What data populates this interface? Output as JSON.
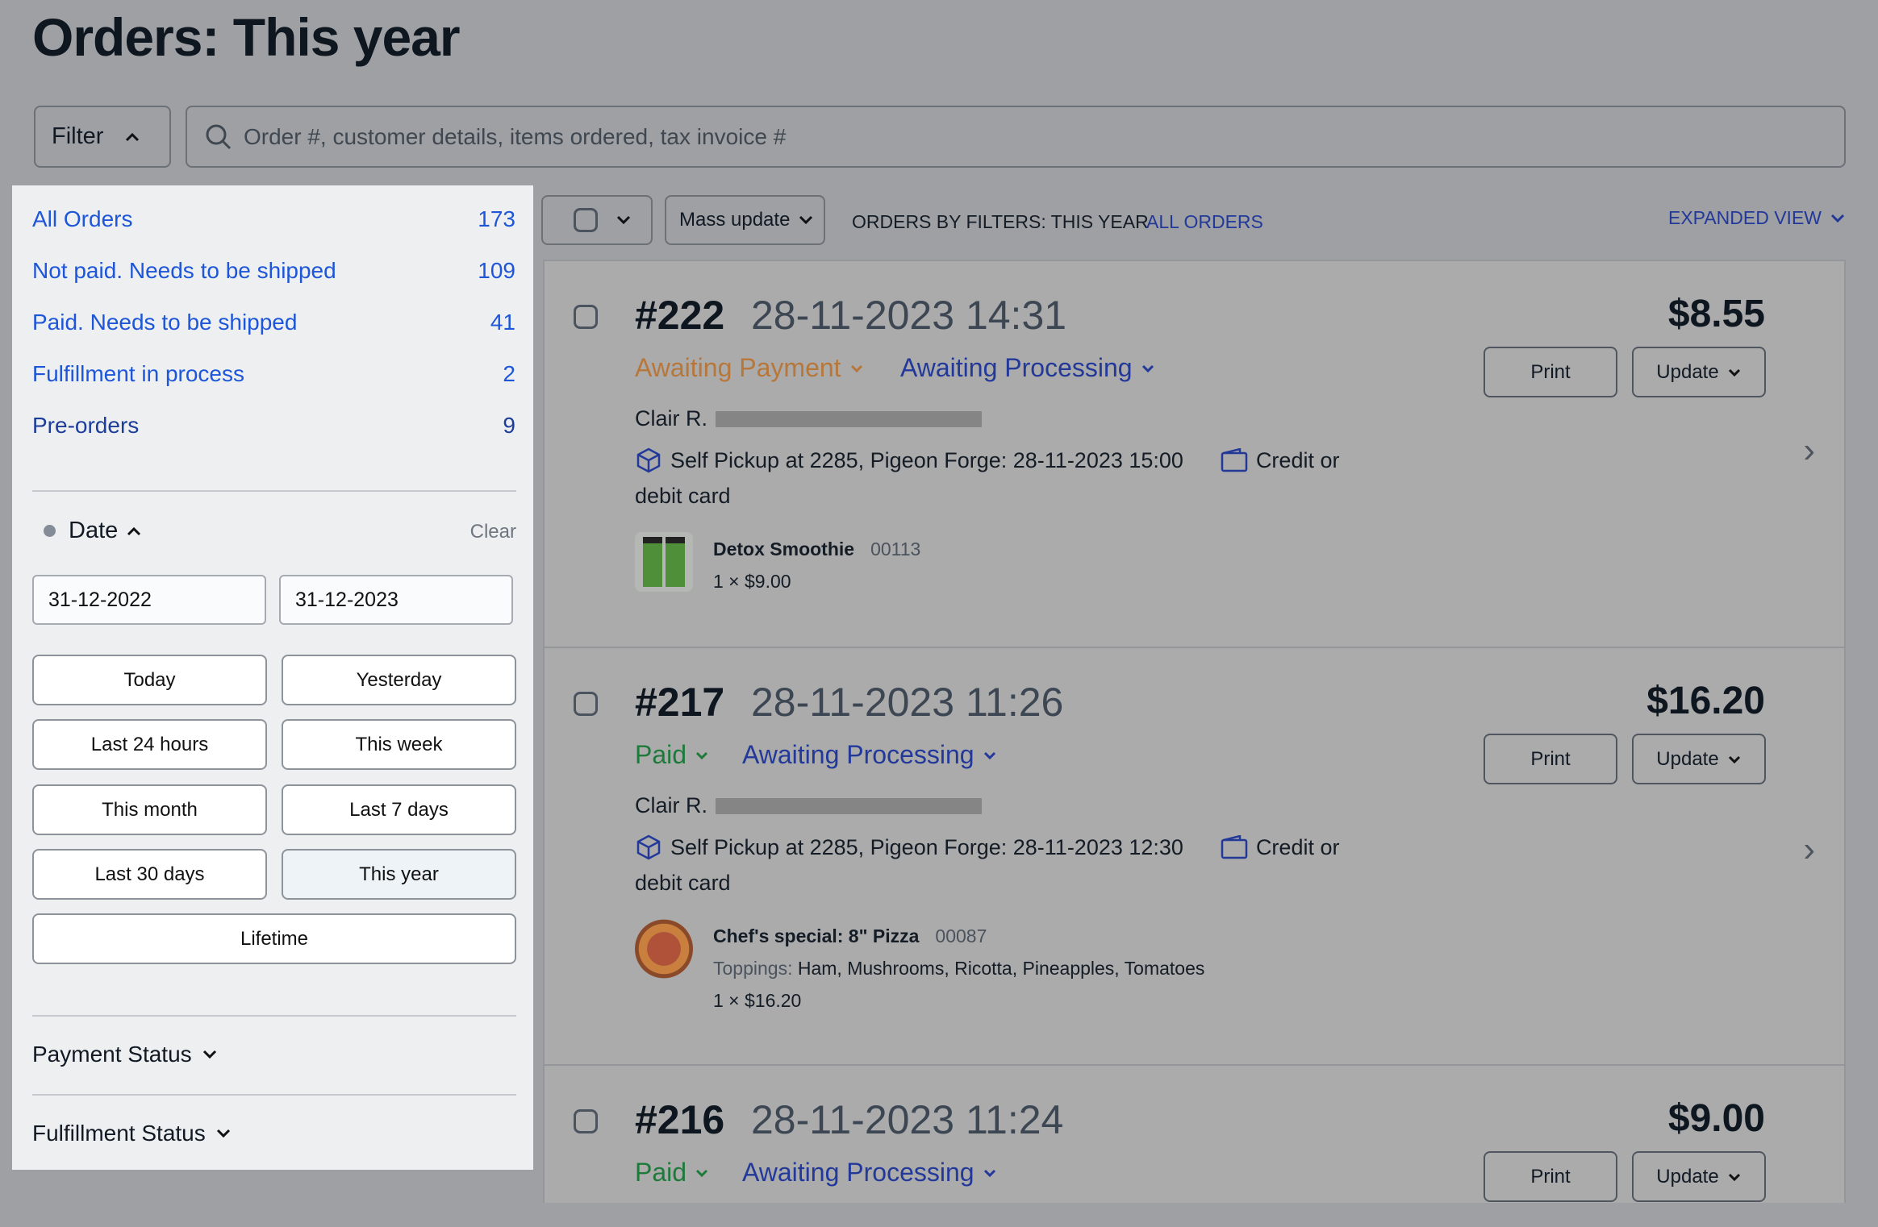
{
  "title": "Orders: This year",
  "filter": {
    "label": "Filter",
    "icon": "chevron-up-icon"
  },
  "search": {
    "placeholder": "Order #, customer details, items ordered, tax invoice #"
  },
  "sidebar": {
    "items": [
      {
        "label": "All Orders",
        "count": "173"
      },
      {
        "label": "Not paid. Needs to be shipped",
        "count": "109"
      },
      {
        "label": "Paid. Needs to be shipped",
        "count": "41"
      },
      {
        "label": "Fulfillment in process",
        "count": "2"
      },
      {
        "label": "Pre-orders",
        "count": "9"
      }
    ],
    "date": {
      "label": "Date",
      "clear": "Clear",
      "from": "31-12-2022",
      "to": "31-12-2023",
      "presets": [
        "Today",
        "Yesterday",
        "Last 24 hours",
        "This week",
        "This month",
        "Last 7 days",
        "Last 30 days",
        "This year",
        "Lifetime"
      ],
      "selected": "This year"
    },
    "payment_status": "Payment Status",
    "fulfillment_status": "Fulfillment Status"
  },
  "toolbar": {
    "mass_update": "Mass update",
    "filters_label": "ORDERS BY FILTERS: THIS YEAR",
    "all_orders": "ALL ORDERS",
    "view": "EXPANDED VIEW"
  },
  "colors": {
    "link": "#1d56d8",
    "awaiting_payment": "#b8773a",
    "paid": "#1e7a3a",
    "processing": "#23399a"
  },
  "orders": [
    {
      "number": "#222",
      "date": "28-11-2023 14:31",
      "price": "$8.55",
      "payment": "Awaiting Payment",
      "fulfillment": "Awaiting Processing",
      "customer": "Clair R.",
      "shipping": "Self Pickup at 2285, Pigeon Forge: 28-11-2023 15:00",
      "payment_method_a": "Credit or",
      "payment_method_b": "debit card",
      "print": "Print",
      "update": "Update",
      "item": {
        "name": "Detox Smoothie",
        "sku": "00113",
        "qty": "1 × $9.00"
      }
    },
    {
      "number": "#217",
      "date": "28-11-2023 11:26",
      "price": "$16.20",
      "payment": "Paid",
      "fulfillment": "Awaiting Processing",
      "customer": "Clair R.",
      "shipping": "Self Pickup at 2285, Pigeon Forge: 28-11-2023 12:30",
      "payment_method_a": "Credit or",
      "payment_method_b": "debit card",
      "print": "Print",
      "update": "Update",
      "item": {
        "name": "Chef's special: 8\" Pizza",
        "sku": "00087",
        "toppings_label": "Toppings:",
        "toppings": "Ham, Mushrooms, Ricotta, Pineapples, Tomatoes",
        "qty": "1 × $16.20"
      }
    },
    {
      "number": "#216",
      "date": "28-11-2023 11:24",
      "price": "$9.00",
      "payment": "Paid",
      "fulfillment": "Awaiting Processing",
      "print": "Print",
      "update": "Update"
    }
  ]
}
